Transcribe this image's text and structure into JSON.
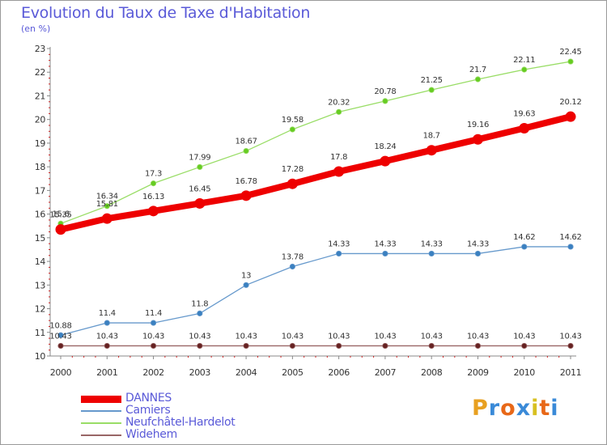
{
  "title": "Evolution du Taux de Taxe d'Habitation",
  "subtitle": "(en %)",
  "logo": {
    "letters": [
      "P",
      "r",
      "o",
      "x",
      "i",
      "t",
      "i"
    ],
    "colors": [
      "#e8a020",
      "#3a8ad8",
      "#e86818",
      "#3a8ad8",
      "#d8c020",
      "#e86818",
      "#3a8ad8"
    ]
  },
  "chart_data": {
    "type": "line",
    "title": "Evolution du Taux de Taxe d'Habitation",
    "ylabel": "(en %)",
    "xlabel": "",
    "x": [
      "2000",
      "2001",
      "2002",
      "2003",
      "2004",
      "2005",
      "2006",
      "2007",
      "2008",
      "2009",
      "2010",
      "2011"
    ],
    "ylim": [
      10,
      23
    ],
    "yticks": [
      "10",
      "11",
      "12",
      "13",
      "14",
      "15",
      "16",
      "17",
      "18",
      "19",
      "20",
      "21",
      "22",
      "23"
    ],
    "grid": false,
    "legend_position": "bottom-left",
    "series": [
      {
        "name": "DANNES",
        "color": "#ee0000",
        "thick": true,
        "values": [
          15.35,
          15.81,
          16.13,
          16.45,
          16.78,
          17.28,
          17.8,
          18.24,
          18.7,
          19.16,
          19.63,
          20.12
        ],
        "labels": [
          "15.35",
          "15.81",
          "16.13",
          "16.45",
          "16.78",
          "17.28",
          "17.8",
          "18.24",
          "18.7",
          "19.16",
          "19.63",
          "20.12"
        ]
      },
      {
        "name": "Camiers",
        "color": "#6699cc",
        "marker": "#3a80c0",
        "values": [
          10.88,
          11.4,
          11.4,
          11.8,
          13,
          13.78,
          14.33,
          14.33,
          14.33,
          14.33,
          14.62,
          14.62
        ],
        "labels": [
          "10.88",
          "11.4",
          "11.4",
          "11.8",
          "13",
          "13.78",
          "14.33",
          "14.33",
          "14.33",
          "14.33",
          "14.62",
          "14.62"
        ]
      },
      {
        "name": "Neufchâtel-Hardelot",
        "color": "#99dd66",
        "marker": "#66cc22",
        "values": [
          15.6,
          16.34,
          17.3,
          17.99,
          18.67,
          19.58,
          20.32,
          20.78,
          21.25,
          21.7,
          22.11,
          22.45
        ],
        "labels": [
          "15.6",
          "16.34",
          "17.3",
          "17.99",
          "18.67",
          "19.58",
          "20.32",
          "20.78",
          "21.25",
          "21.7",
          "22.11",
          "22.45"
        ]
      },
      {
        "name": "Widehem",
        "color": "#996666",
        "marker": "#662222",
        "values": [
          10.43,
          10.43,
          10.43,
          10.43,
          10.43,
          10.43,
          10.43,
          10.43,
          10.43,
          10.43,
          10.43,
          10.43
        ],
        "labels": [
          "10.43",
          "10.43",
          "10.43",
          "10.43",
          "10.43",
          "10.43",
          "10.43",
          "10.43",
          "10.43",
          "10.43",
          "10.43",
          "10.43"
        ]
      }
    ]
  }
}
